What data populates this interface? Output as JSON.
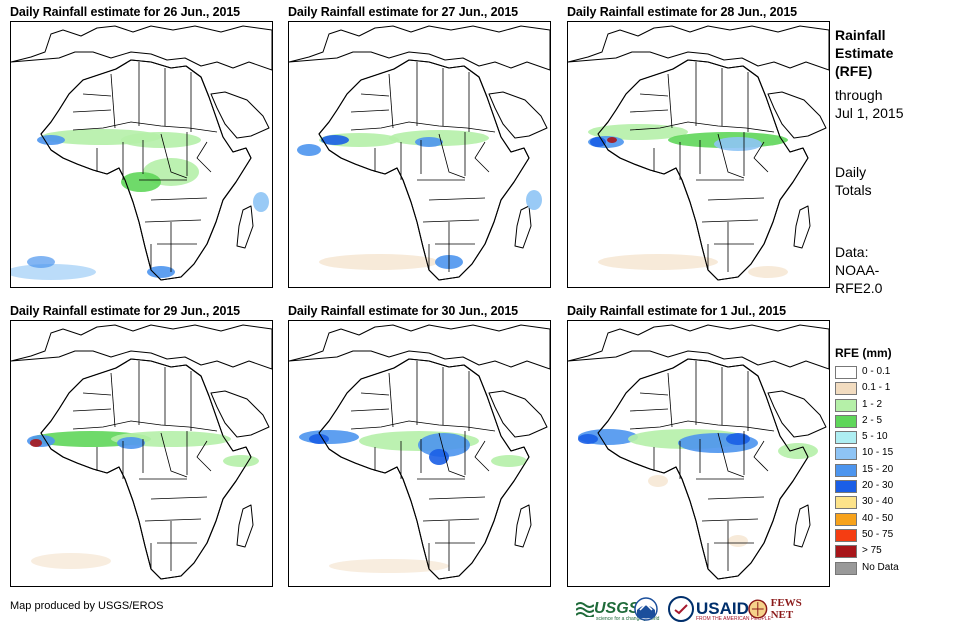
{
  "panels": [
    {
      "title": "Daily Rainfall estimate for 26 Jun., 2015"
    },
    {
      "title": "Daily Rainfall estimate for 27 Jun., 2015"
    },
    {
      "title": "Daily Rainfall estimate for 28 Jun., 2015"
    },
    {
      "title": "Daily Rainfall estimate for 29 Jun., 2015"
    },
    {
      "title": "Daily Rainfall estimate for 30 Jun., 2015"
    },
    {
      "title": "Daily Rainfall estimate for 1 Jul., 2015"
    }
  ],
  "side": {
    "title_line1": "Rainfall",
    "title_line2": "Estimate",
    "title_line3": "(RFE)",
    "through_label": "through",
    "through_date": "Jul 1, 2015",
    "totals_line1": "Daily",
    "totals_line2": "Totals",
    "data_line1": "Data:",
    "data_line2": "NOAA-",
    "data_line3": "RFE2.0"
  },
  "legend": {
    "title": "RFE (mm)",
    "items": [
      {
        "label": "0 - 0.1",
        "color": "#ffffff"
      },
      {
        "label": "0.1 - 1",
        "color": "#f2dcc0"
      },
      {
        "label": "1 - 2",
        "color": "#b5f0a8"
      },
      {
        "label": "2 - 5",
        "color": "#5fd65a"
      },
      {
        "label": "5 - 10",
        "color": "#aeeef2"
      },
      {
        "label": "10 - 15",
        "color": "#8ec4f5"
      },
      {
        "label": "15 - 20",
        "color": "#4d95ee"
      },
      {
        "label": "20 - 30",
        "color": "#1a5ee6"
      },
      {
        "label": "30 - 40",
        "color": "#fde38a"
      },
      {
        "label": "40 - 50",
        "color": "#f7a21b"
      },
      {
        "label": "50 - 75",
        "color": "#f53d12"
      },
      {
        "label": "> 75",
        "color": "#a8161a"
      },
      {
        "label": "No Data",
        "color": "#999999"
      }
    ]
  },
  "credit": "Map produced by USGS/EROS",
  "logos": {
    "usgs": "USGS",
    "usgs_tagline": "science for a changing world",
    "usaid": "USAID",
    "usaid_tagline": "FROM THE AMERICAN PEOPLE",
    "fews": "FEWS NET"
  }
}
